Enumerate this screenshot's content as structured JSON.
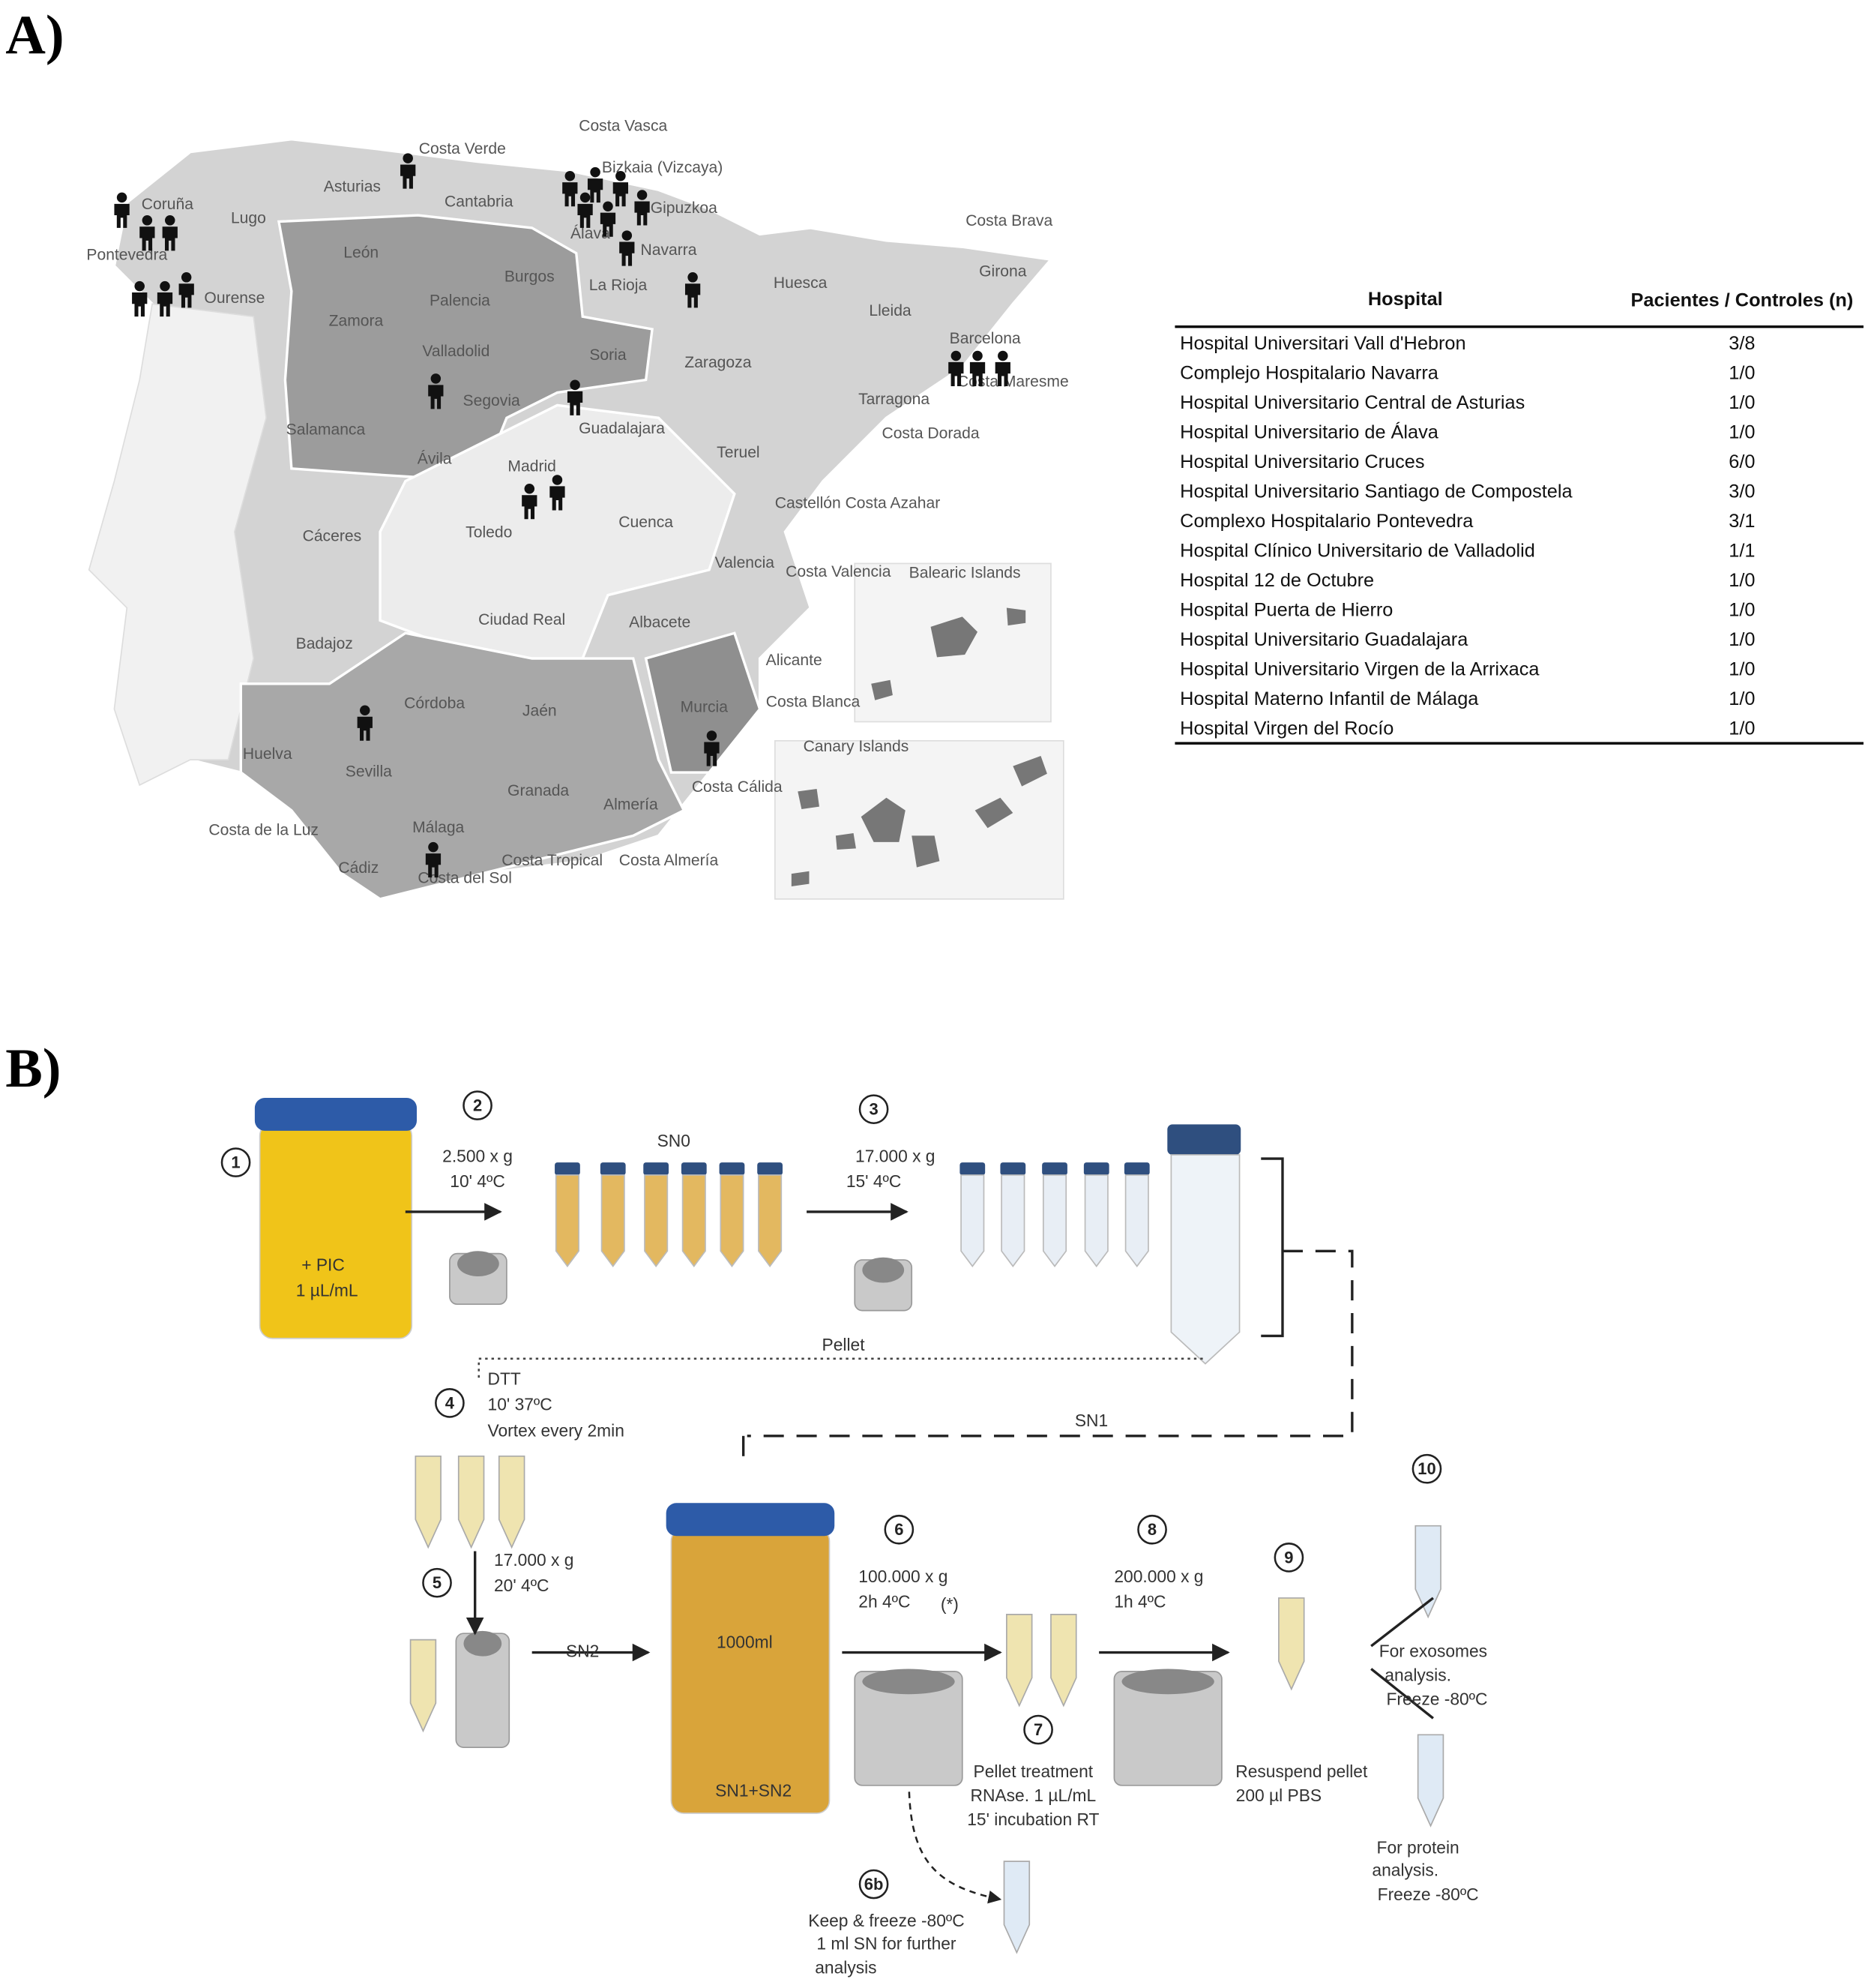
{
  "panels": [
    "A)",
    "B)"
  ],
  "map": {
    "labels": [
      "Costa Verde",
      "Costa Vasca",
      "Bizkaia (Vizcaya)",
      "Asturias",
      "Coruña",
      "Lugo",
      "Cantabria",
      "Gipuzkoa",
      "Álava",
      "Navarra",
      "La Rioja",
      "Costa Brava",
      "Huesca",
      "Lleida",
      "Girona",
      "León",
      "Burgos",
      "Palencia",
      "Ourense",
      "Pontevedra",
      "Zamora",
      "Valladolid",
      "Soria",
      "Zaragoza",
      "Barcelona",
      "Costa Maresme",
      "Segovia",
      "Guadalajara",
      "Tarragona",
      "Costa Dorada",
      "Salamanca",
      "Ávila",
      "Madrid",
      "Teruel",
      "Castellón",
      "Costa Azahar",
      "Cáceres",
      "Toledo",
      "Cuenca",
      "Valencia",
      "Costa Valencia",
      "Balearic Islands",
      "Ciudad Real",
      "Albacete",
      "Badajoz",
      "Alicante",
      "Costa Blanca",
      "Córdoba",
      "Jaén",
      "Murcia",
      "Canary Islands",
      "Huelva",
      "Sevilla",
      "Granada",
      "Almería",
      "Costa Cálida",
      "Costa de la Luz",
      "Málaga",
      "Costa Tropical",
      "Costa Almería",
      "Cádiz",
      "Costa del Sol"
    ]
  },
  "table": {
    "header": [
      "Hospital",
      "Pacientes / Controles (n)"
    ],
    "rows": [
      [
        "Hospital Universitari Vall d'Hebron",
        "3/8"
      ],
      [
        "Complejo Hospitalario Navarra",
        "1/0"
      ],
      [
        "Hospital Universitario Central de Asturias",
        "1/0"
      ],
      [
        "Hospital Universitario de Álava",
        "1/0"
      ],
      [
        "Hospital Universitario Cruces",
        "6/0"
      ],
      [
        "Hospital Universitario Santiago de Compostela",
        "3/0"
      ],
      [
        "Complexo Hospitalario Pontevedra",
        "3/1"
      ],
      [
        "Hospital Clínico Universitario de Valladolid",
        "1/1"
      ],
      [
        "Hospital 12 de Octubre",
        "1/0"
      ],
      [
        "Hospital Puerta de Hierro",
        "1/0"
      ],
      [
        "Hospital Universitario Guadalajara",
        "1/0"
      ],
      [
        "Hospital Universitario Virgen de la Arrixaca",
        "1/0"
      ],
      [
        "Hospital Materno Infantil de Málaga",
        "1/0"
      ],
      [
        "Hospital Virgen del Rocío",
        "1/0"
      ]
    ]
  },
  "diagram": {
    "steps": [
      "1",
      "2",
      "3",
      "4",
      "5",
      "6",
      "7",
      "8",
      "9",
      "10",
      "6b"
    ],
    "texts": [
      "+ PIC",
      "1 µL/mL",
      "2.500 x g",
      "10' 4ºC",
      "SN0",
      "17.000 x g",
      "15' 4ºC",
      "Pellet",
      "DTT",
      "10' 37ºC",
      "Vortex every 2min",
      "SN1",
      "17.000 x g",
      "20' 4ºC",
      "SN2",
      "1000ml",
      "SN1+SN2",
      "100.000 x g",
      "2h 4ºC",
      "(*)",
      "200.000 x g",
      "1h  4ºC",
      "Pellet treatment",
      "RNAse. 1 µL/mL",
      "15' incubation RT",
      "Resuspend pellet",
      "200 µl PBS",
      "For exosomes",
      "analysis.",
      "Freeze -80ºC",
      "For protein",
      "analysis.",
      "Freeze -80ºC",
      "Keep & freeze -80ºC",
      "1 ml SN for further",
      "analysis"
    ]
  }
}
